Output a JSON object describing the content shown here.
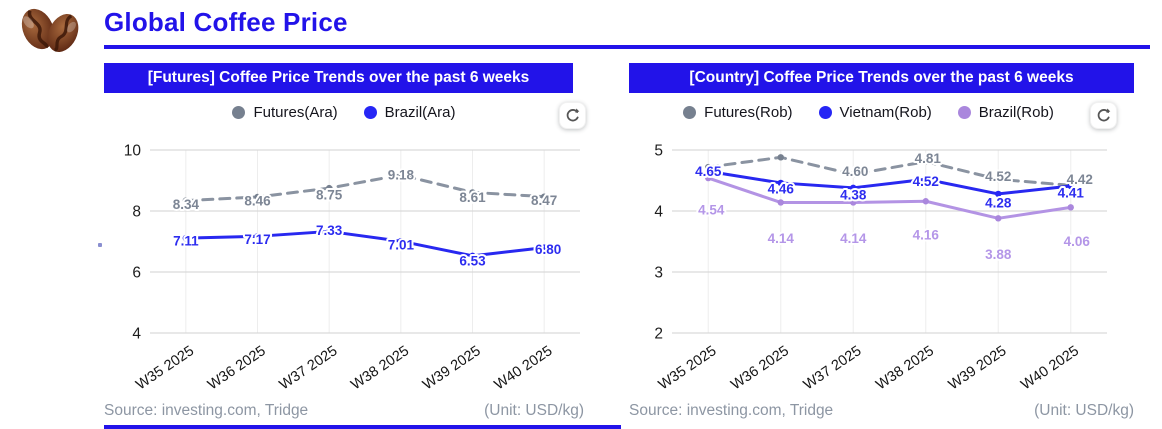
{
  "header": {
    "title": "Global Coffee Price",
    "logo_icon": "coffee-beans-icon",
    "accent_color": "#2213e9"
  },
  "panels": [
    {
      "header": "[Futures] Coffee Price Trends over the past 6 weeks",
      "source": "Source: investing.com, Tridge",
      "unit": "(Unit: USD/kg)",
      "refresh_icon": "refresh-icon"
    },
    {
      "header": "[Country] Coffee Price Trends over the past 6 weeks",
      "source": "Source: investing.com, Tridge",
      "unit": "(Unit: USD/kg)",
      "refresh_icon": "refresh-icon"
    }
  ],
  "chart_data": [
    {
      "type": "line",
      "title": "[Futures] Coffee Price Trends over the past 6 weeks",
      "unit": "USD/kg",
      "categories": [
        "W35 2025",
        "W36 2025",
        "W37 2025",
        "W38 2025",
        "W39 2025",
        "W40 2025"
      ],
      "ylim": [
        4,
        10
      ],
      "yticks": [
        10,
        8,
        6,
        4
      ],
      "grid": true,
      "legend_position": "top",
      "series": [
        {
          "name": "Futures(Ara)",
          "color": "#8a93a1",
          "label_color": "#7d8695",
          "dot_color": "#76808f",
          "dashed": true,
          "values": [
            8.34,
            8.46,
            8.75,
            9.18,
            8.61,
            8.47
          ],
          "labels": [
            "8.34",
            "8.46",
            "8.75",
            "9.18",
            "8.61",
            "8.47"
          ],
          "label_offsets": [
            [
              0,
              4
            ],
            [
              0,
              4
            ],
            [
              0,
              7
            ],
            [
              0,
              0
            ],
            [
              0,
              5
            ],
            [
              0,
              4
            ]
          ]
        },
        {
          "name": "Brazil(Ara)",
          "color": "#2828f0",
          "label_color": "#2d2df0",
          "dot_color": "#2626f5",
          "dashed": false,
          "values": [
            7.11,
            7.17,
            7.33,
            7.01,
            6.53,
            6.8
          ],
          "labels": [
            "7.11",
            "7.17",
            "7.33",
            "7.01",
            "6.53",
            "6.80"
          ],
          "label_offsets": [
            [
              0,
              3
            ],
            [
              0,
              3
            ],
            [
              0,
              -1
            ],
            [
              0,
              4
            ],
            [
              0,
              5
            ],
            [
              4,
              2
            ]
          ]
        }
      ]
    },
    {
      "type": "line",
      "title": "[Country] Coffee Price Trends over the past 6 weeks",
      "unit": "USD/kg",
      "categories": [
        "W35 2025",
        "W36 2025",
        "W37 2025",
        "W38 2025",
        "W39 2025",
        "W40 2025"
      ],
      "ylim": [
        2,
        5
      ],
      "yticks": [
        5,
        4,
        3,
        2
      ],
      "grid": true,
      "legend_position": "top",
      "series": [
        {
          "name": "Futures(Rob)",
          "color": "#8a93a1",
          "label_color": "#7d8695",
          "dot_color": "#76808f",
          "dashed": true,
          "values": [
            4.72,
            4.88,
            4.6,
            4.81,
            4.52,
            4.42
          ],
          "labels": [
            null,
            null,
            "4.60",
            "4.81",
            "4.52",
            "4.42"
          ],
          "label_offsets": [
            null,
            null,
            [
              2,
              -3
            ],
            [
              2,
              -3
            ],
            [
              0,
              -3
            ],
            [
              9,
              -6
            ]
          ]
        },
        {
          "name": "Vietnam(Rob)",
          "color": "#2828f0",
          "label_color": "#2d2df0",
          "dot_color": "#2626f5",
          "dashed": false,
          "values": [
            4.65,
            4.46,
            4.38,
            4.52,
            4.28,
            4.41
          ],
          "labels": [
            "4.65",
            "4.46",
            "4.38",
            "4.52",
            "4.28",
            "4.41"
          ],
          "label_offsets": [
            [
              0,
              0
            ],
            [
              0,
              6
            ],
            [
              0,
              7
            ],
            [
              0,
              2
            ],
            [
              0,
              9
            ],
            [
              0,
              7
            ]
          ]
        },
        {
          "name": "Brazil(Rob)",
          "color": "#b393e4",
          "label_color": "#b496e8",
          "dot_color": "#aa87dd",
          "dashed": false,
          "values": [
            4.54,
            4.14,
            4.14,
            4.16,
            3.88,
            4.06
          ],
          "labels": [
            "4.54",
            "4.14",
            "4.14",
            "4.16",
            "3.88",
            "4.06"
          ],
          "label_offsets": [
            [
              3,
              32
            ],
            [
              0,
              36
            ],
            [
              0,
              36
            ],
            [
              0,
              34
            ],
            [
              0,
              36
            ],
            [
              6,
              34
            ]
          ]
        }
      ]
    }
  ]
}
